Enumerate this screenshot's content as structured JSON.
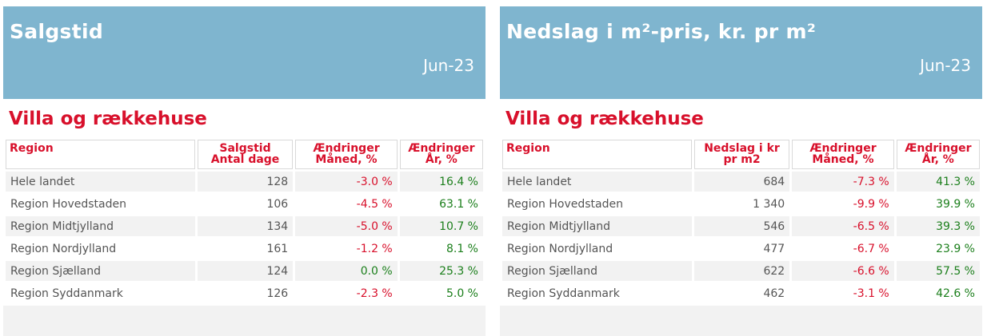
{
  "left": {
    "title": "Salgstid",
    "date": "Jun-23",
    "subtitle": "Villa og rækkehuse",
    "headers": [
      "Region",
      "Salgstid Antal dage",
      "Ændringer Måned, %",
      "Ændringer År, %"
    ],
    "rows": [
      {
        "region": "Hele landet",
        "value": "128",
        "month": "-3.0 %",
        "year": "16.4 %"
      },
      {
        "region": "Region Hovedstaden",
        "value": "106",
        "month": "-4.5 %",
        "year": "63.1 %"
      },
      {
        "region": "Region Midtjylland",
        "value": "134",
        "month": "-5.0 %",
        "year": "10.7 %"
      },
      {
        "region": "Region Nordjylland",
        "value": "161",
        "month": "-1.2 %",
        "year": "8.1 %"
      },
      {
        "region": "Region Sjælland",
        "value": "124",
        "month": "0.0 %",
        "year": "25.3 %"
      },
      {
        "region": "Region Syddanmark",
        "value": "126",
        "month": "-2.3 %",
        "year": "5.0 %"
      }
    ]
  },
  "right": {
    "title": "Nedslag i m²-pris, kr. pr m²",
    "date": "Jun-23",
    "subtitle": "Villa og rækkehuse",
    "headers": [
      "Region",
      "Nedslag i kr pr m2",
      "Ændringer Måned, %",
      "Ændringer År, %"
    ],
    "rows": [
      {
        "region": "Hele landet",
        "value": "684",
        "month": "-7.3 %",
        "year": "41.3 %"
      },
      {
        "region": "Region Hovedstaden",
        "value": "1 340",
        "month": "-9.9 %",
        "year": "39.9 %"
      },
      {
        "region": "Region Midtjylland",
        "value": "546",
        "month": "-6.5 %",
        "year": "39.3 %"
      },
      {
        "region": "Region Nordjylland",
        "value": "477",
        "month": "-6.7 %",
        "year": "23.9 %"
      },
      {
        "region": "Region Sjælland",
        "value": "622",
        "month": "-6.6 %",
        "year": "57.5 %"
      },
      {
        "region": "Region Syddanmark",
        "value": "462",
        "month": "-3.1 %",
        "year": "42.6 %"
      }
    ]
  },
  "colors": {
    "header_bg": "#7fb5cf",
    "accent_red": "#d8102b",
    "positive_green": "#1c7f1c",
    "row_alt": "#f2f2f2"
  }
}
